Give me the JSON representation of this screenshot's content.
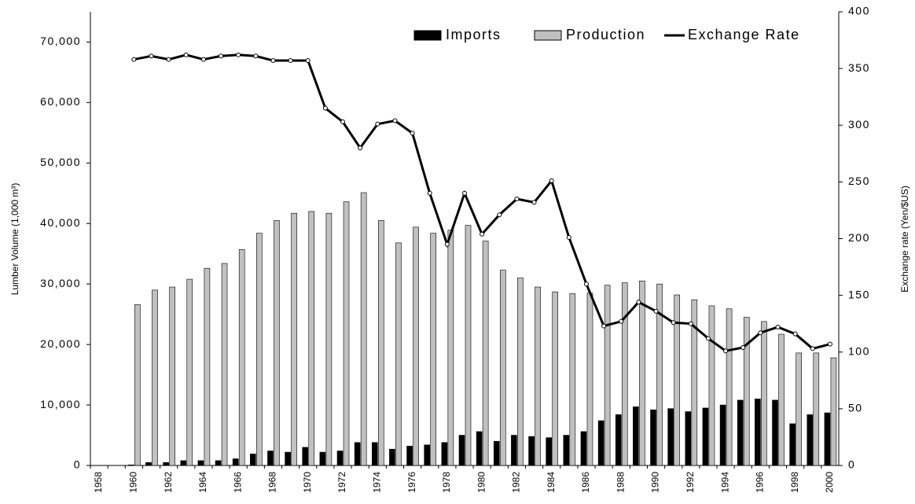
{
  "chart_data": {
    "type": "bar",
    "ylabel": "Lumber Volume (1,000 m³)",
    "y2label": "Exchange rate (Yen/$US)",
    "categories": [
      "1958",
      null,
      "1960",
      null,
      "1962",
      null,
      "1964",
      null,
      "1966",
      null,
      "1968",
      null,
      "1970",
      null,
      "1972",
      null,
      "1974",
      null,
      "1976",
      null,
      "1978",
      null,
      "1980",
      null,
      "1982",
      null,
      "1984",
      null,
      "1986",
      null,
      "1988",
      null,
      "1990",
      null,
      "1992",
      null,
      "1994",
      null,
      "1996",
      null,
      "1998",
      null,
      "2000"
    ],
    "series": [
      {
        "name": "Imports",
        "type": "bar",
        "color": "#000000",
        "values": [
          null,
          null,
          100,
          500,
          500,
          800,
          800,
          800,
          1100,
          1900,
          2400,
          2200,
          3000,
          2200,
          2400,
          3800,
          3800,
          2700,
          3200,
          3400,
          3800,
          5000,
          5600,
          4000,
          5000,
          4800,
          4600,
          5000,
          5600,
          7400,
          8400,
          9700,
          9200,
          9400,
          8900,
          9500,
          10000,
          10800,
          11000,
          10800,
          6900,
          8400,
          8700
        ]
      },
      {
        "name": "Production",
        "type": "bar",
        "color": "#c0c0c0",
        "values": [
          null,
          null,
          26600,
          29000,
          29500,
          30800,
          32600,
          33400,
          35700,
          38400,
          40500,
          41700,
          42000,
          41700,
          43600,
          45100,
          40500,
          36800,
          39400,
          38400,
          38900,
          39700,
          37100,
          32300,
          31000,
          29500,
          28700,
          28400,
          28500,
          29800,
          30200,
          30500,
          30000,
          28200,
          27400,
          26400,
          25900,
          24500,
          23800,
          21700,
          18600,
          18600,
          17800
        ]
      },
      {
        "name": "Exchange Rate",
        "type": "line",
        "axis": "y2",
        "color": "#000000",
        "values": [
          null,
          null,
          358,
          361,
          358,
          362,
          358,
          361,
          362,
          361,
          357,
          357,
          357,
          315,
          303,
          280,
          301,
          304,
          293,
          240,
          195,
          240,
          204,
          221,
          235,
          232,
          251,
          201,
          160,
          123,
          127,
          144,
          136,
          126,
          125,
          112,
          101,
          104,
          117,
          122,
          116,
          103,
          107
        ]
      }
    ],
    "ylim": [
      0,
      75000
    ],
    "yticks": [
      0,
      {
        "value": 10000,
        "label": "10,000"
      },
      {
        "value": 20000,
        "label": "20,000"
      },
      {
        "value": 30000,
        "label": "30,000"
      },
      {
        "value": 40000,
        "label": "40,000"
      },
      {
        "value": 50000,
        "label": "50,000"
      },
      {
        "value": 60000,
        "label": "60,000"
      },
      {
        "value": 70000,
        "label": "70,000"
      }
    ],
    "y2lim": [
      0,
      400
    ],
    "y2ticks": [
      0,
      50,
      100,
      150,
      200,
      250,
      300,
      350,
      400
    ],
    "legend": "top-right"
  }
}
